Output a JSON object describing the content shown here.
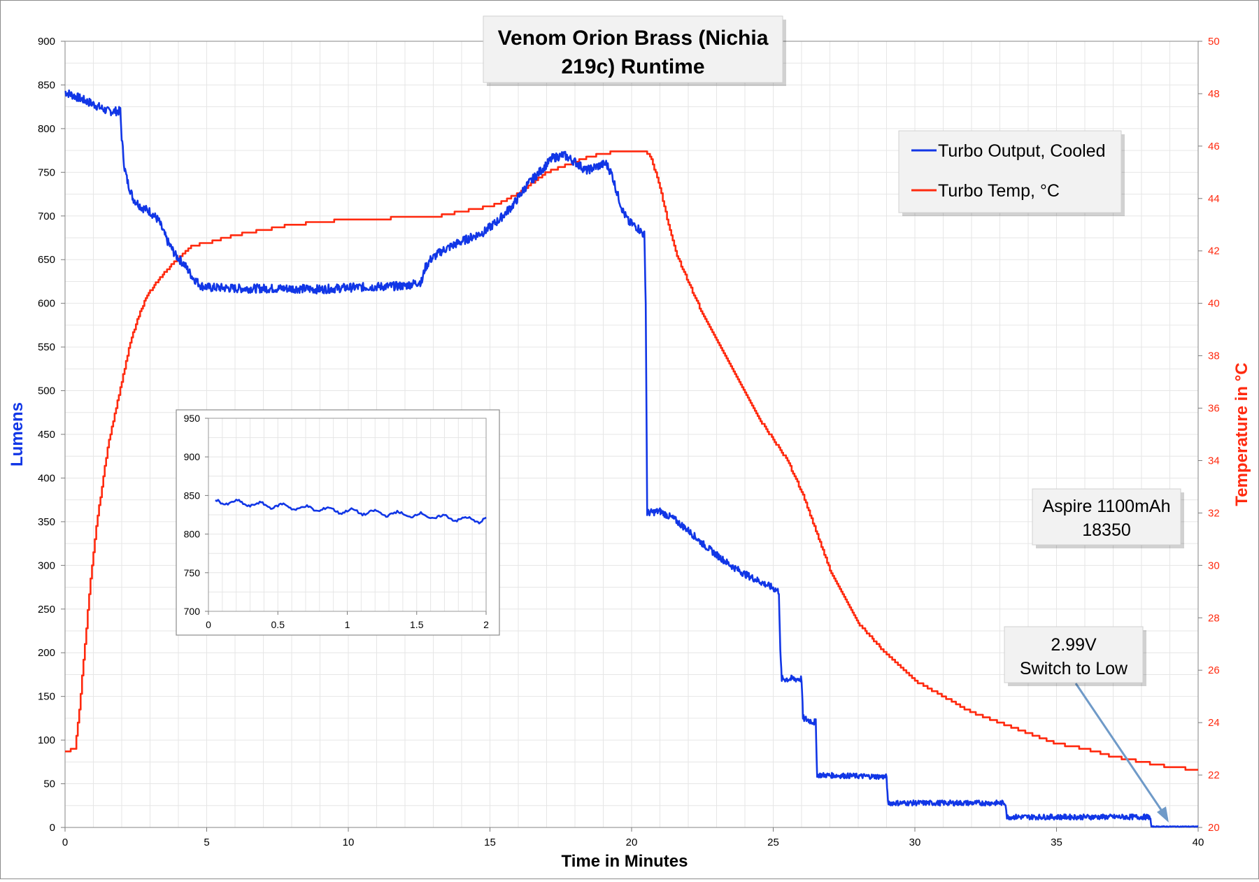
{
  "colors": {
    "lumens": "#1136e6",
    "temp": "#ff2a0f",
    "grid": "#e6e6e6",
    "arrow": "#6f9ac8"
  },
  "chart_data": [
    {
      "type": "line",
      "title": "Venom Orion Brass (Nichia 219c) Runtime",
      "title_lines": [
        "Venom Orion Brass (Nichia",
        "219c) Runtime"
      ],
      "xlabel": "Time in Minutes",
      "ylabel": "Lumens",
      "y2label": "Temperature in °C",
      "xlim": [
        0,
        40
      ],
      "ylim": [
        0,
        900
      ],
      "y2lim": [
        20,
        50
      ],
      "xticks": [
        0,
        5,
        10,
        15,
        20,
        25,
        30,
        35,
        40
      ],
      "yticks": [
        0,
        50,
        100,
        150,
        200,
        250,
        300,
        350,
        400,
        450,
        500,
        550,
        600,
        650,
        700,
        750,
        800,
        850,
        900
      ],
      "y2ticks": [
        20,
        22,
        24,
        26,
        28,
        30,
        32,
        34,
        36,
        38,
        40,
        42,
        44,
        46,
        48,
        50
      ],
      "grid": true,
      "legend_position": "top-right",
      "series": [
        {
          "name": "Turbo Output, Cooled",
          "axis": "left",
          "x": [
            0,
            0.5,
            1,
            1.5,
            1.95,
            2.0,
            2.1,
            2.2,
            2.4,
            2.7,
            3.0,
            3.3,
            3.6,
            3.9,
            4.2,
            4.5,
            4.8,
            5.1,
            5.4,
            6,
            7,
            8,
            9,
            10,
            11,
            12,
            12.6,
            12.7,
            12.9,
            13.3,
            13.8,
            14.3,
            14.8,
            15.3,
            15.8,
            16.3,
            16.8,
            17.2,
            17.6,
            18.0,
            18.4,
            18.8,
            19.1,
            19.3,
            19.5,
            19.7,
            19.9,
            20.2,
            20.45,
            20.5,
            20.55,
            21.0,
            21.5,
            22.0,
            22.5,
            23.0,
            23.5,
            24.0,
            24.5,
            25.0,
            25.2,
            25.25,
            25.3,
            26.0,
            26.05,
            26.5,
            26.55,
            29.0,
            29.05,
            33.2,
            33.25,
            38.3,
            38.35,
            40
          ],
          "y": [
            842,
            835,
            828,
            820,
            820,
            790,
            755,
            740,
            720,
            710,
            705,
            695,
            672,
            655,
            645,
            630,
            620,
            618,
            618,
            617,
            617,
            617,
            616,
            618,
            619,
            620,
            625,
            640,
            650,
            660,
            668,
            675,
            682,
            695,
            712,
            735,
            752,
            766,
            770,
            762,
            752,
            757,
            760,
            748,
            725,
            705,
            693,
            687,
            678,
            600,
            360,
            362,
            353,
            340,
            325,
            312,
            300,
            290,
            282,
            274,
            270,
            200,
            170,
            170,
            125,
            120,
            60,
            58,
            28,
            28,
            12,
            12,
            1,
            1
          ]
        },
        {
          "name": "Turbo Temp, °C",
          "axis": "right",
          "x": [
            0,
            0.35,
            0.5,
            0.7,
            0.9,
            1.1,
            1.3,
            1.5,
            1.7,
            1.9,
            2.1,
            2.3,
            2.5,
            2.7,
            2.9,
            3.1,
            3.3,
            3.6,
            3.9,
            4.2,
            4.5,
            5.0,
            6.0,
            7.0,
            8.0,
            9.0,
            10.0,
            11.0,
            12.0,
            13.0,
            14.0,
            15.0,
            15.5,
            16.0,
            16.5,
            17.0,
            17.5,
            18.0,
            18.5,
            19.0,
            19.5,
            20.0,
            20.5,
            20.7,
            21.0,
            21.3,
            21.6,
            22.0,
            22.5,
            23.0,
            23.5,
            24.0,
            24.5,
            25.0,
            25.5,
            26.0,
            26.5,
            27.0,
            27.5,
            28.0,
            29.0,
            30.0,
            31.0,
            32.0,
            33.0,
            34.0,
            35.0,
            36.0,
            37.0,
            38.0,
            39.0,
            40.0
          ],
          "y": [
            22.9,
            23.0,
            24.5,
            27.0,
            29.5,
            31.5,
            33.0,
            34.5,
            35.5,
            36.5,
            37.5,
            38.5,
            39.2,
            39.8,
            40.3,
            40.6,
            40.9,
            41.3,
            41.6,
            41.9,
            42.2,
            42.3,
            42.6,
            42.8,
            43.0,
            43.1,
            43.2,
            43.2,
            43.3,
            43.3,
            43.5,
            43.7,
            43.9,
            44.2,
            44.6,
            45.0,
            45.2,
            45.4,
            45.6,
            45.7,
            45.8,
            45.8,
            45.8,
            45.5,
            44.4,
            43.0,
            41.8,
            40.8,
            39.6,
            38.6,
            37.6,
            36.6,
            35.6,
            34.8,
            34.0,
            32.8,
            31.3,
            29.8,
            28.8,
            27.8,
            26.6,
            25.6,
            25.0,
            24.4,
            24.0,
            23.6,
            23.2,
            23.0,
            22.7,
            22.5,
            22.3,
            22.2
          ]
        }
      ],
      "annotations": [
        {
          "lines": [
            "Aspire 1100mAh",
            "18350"
          ]
        },
        {
          "lines": [
            "2.99V",
            "Switch to Low"
          ],
          "points_to_x": 38.7,
          "points_to_y": 1
        }
      ]
    },
    {
      "type": "line",
      "title": "",
      "xlim": [
        0,
        2
      ],
      "ylim": [
        700,
        950
      ],
      "xticks": [
        0,
        0.5,
        1,
        1.5,
        2
      ],
      "xtick_labels": [
        "0",
        "0.5",
        "1",
        "1.5",
        "2"
      ],
      "yticks": [
        700,
        750,
        800,
        850,
        900,
        950
      ],
      "grid": true,
      "series": [
        {
          "axis": "left",
          "x": [
            0.05,
            0.15,
            0.25,
            0.35,
            0.45,
            0.55,
            0.65,
            0.75,
            0.85,
            0.95,
            1.05,
            1.15,
            1.25,
            1.35,
            1.45,
            1.55,
            1.65,
            1.75,
            1.85,
            1.95,
            2.0
          ],
          "y": [
            842,
            841,
            840,
            838,
            837,
            836,
            834,
            833,
            832,
            830,
            829,
            828,
            827,
            826,
            825,
            824,
            822,
            821,
            819,
            818,
            820
          ]
        }
      ]
    }
  ]
}
